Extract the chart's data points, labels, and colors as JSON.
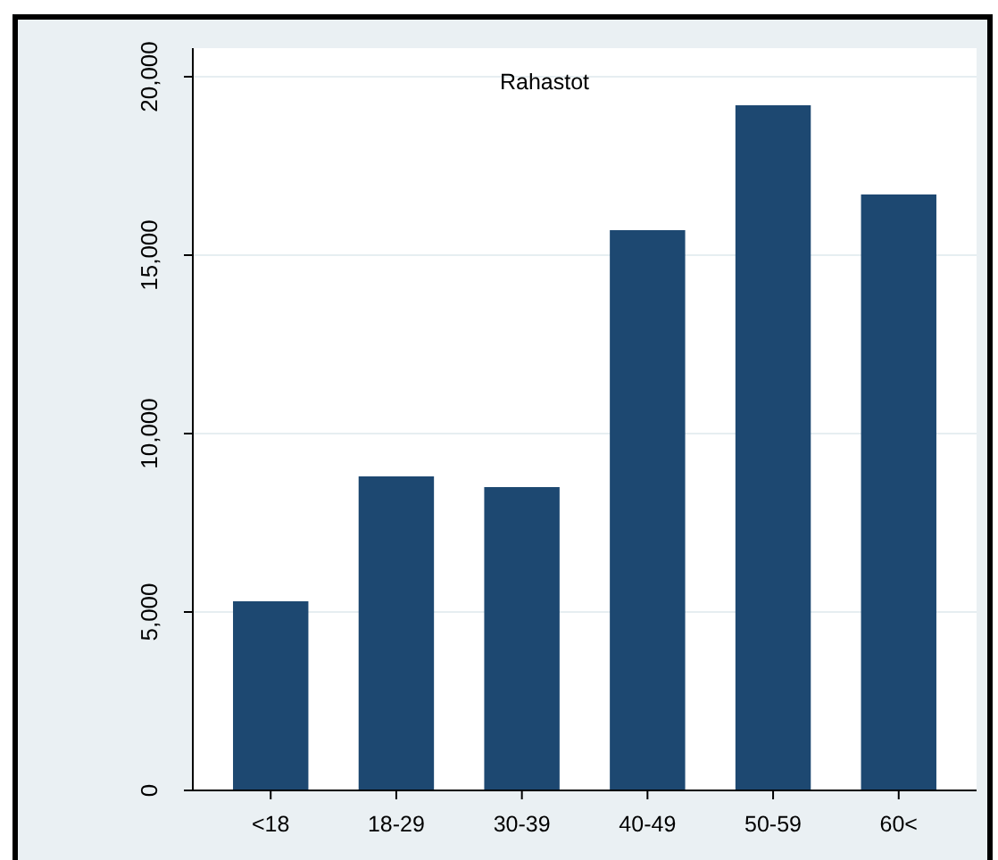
{
  "chart_data": {
    "type": "bar",
    "title": "Rahastot",
    "categories": [
      "<18",
      "18-29",
      "30-39",
      "40-49",
      "50-59",
      "60<"
    ],
    "values": [
      5300,
      8800,
      8500,
      15700,
      19200,
      16700
    ],
    "color": "#1d4871",
    "ylim": [
      0,
      20800
    ],
    "yticks": [
      {
        "value": 0,
        "label": "0"
      },
      {
        "value": 5000,
        "label": "5,000"
      },
      {
        "value": 10000,
        "label": "10,000"
      },
      {
        "value": 15000,
        "label": "15,000"
      },
      {
        "value": 20000,
        "label": "20,000"
      }
    ],
    "grid": "y"
  }
}
